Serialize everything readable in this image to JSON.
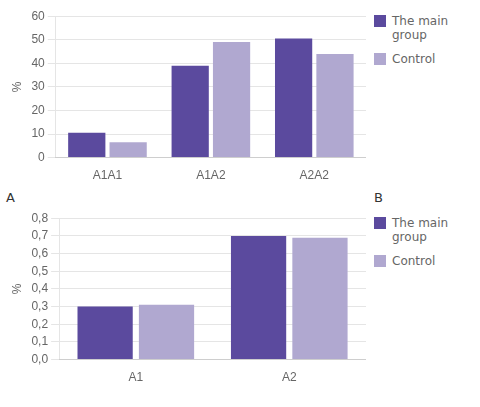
{
  "chart_data": [
    {
      "type": "bar",
      "categories": [
        "A1A1",
        "A1A2",
        "A2A2"
      ],
      "series": [
        {
          "name": "The main\ngroup",
          "color": "#5B4A9E",
          "values": [
            10.5,
            39,
            50.5
          ]
        },
        {
          "name": "Control",
          "color": "#B0A8D0",
          "values": [
            6.5,
            49,
            44
          ]
        }
      ],
      "ylabel": "%",
      "ylim": [
        0,
        60
      ],
      "yticks": [
        0,
        10,
        20,
        30,
        40,
        50,
        60
      ],
      "grid": true,
      "legend": "right",
      "annotations": [
        "A",
        "B"
      ]
    },
    {
      "type": "bar",
      "categories": [
        "A1",
        "A2"
      ],
      "series": [
        {
          "name": "The main\ngroup",
          "color": "#5B4A9E",
          "values": [
            0.3,
            0.7
          ]
        },
        {
          "name": "Control",
          "color": "#B0A8D0",
          "values": [
            0.31,
            0.69
          ]
        }
      ],
      "ylabel": "%",
      "ylim": [
        0,
        0.8
      ],
      "yticks": [
        {
          "value": 0,
          "label": "0,0"
        },
        {
          "value": 0.1,
          "label": "0,1"
        },
        {
          "value": 0.2,
          "label": "0,2"
        },
        {
          "value": 0.3,
          "label": "0,3"
        },
        {
          "value": 0.4,
          "label": "0,4"
        },
        {
          "value": 0.5,
          "label": "0,5"
        },
        {
          "value": 0.6,
          "label": "0,6"
        },
        {
          "value": 0.7,
          "label": "0,7"
        },
        {
          "value": 0.8,
          "label": "0,8"
        }
      ],
      "grid": true,
      "legend": "right"
    }
  ]
}
